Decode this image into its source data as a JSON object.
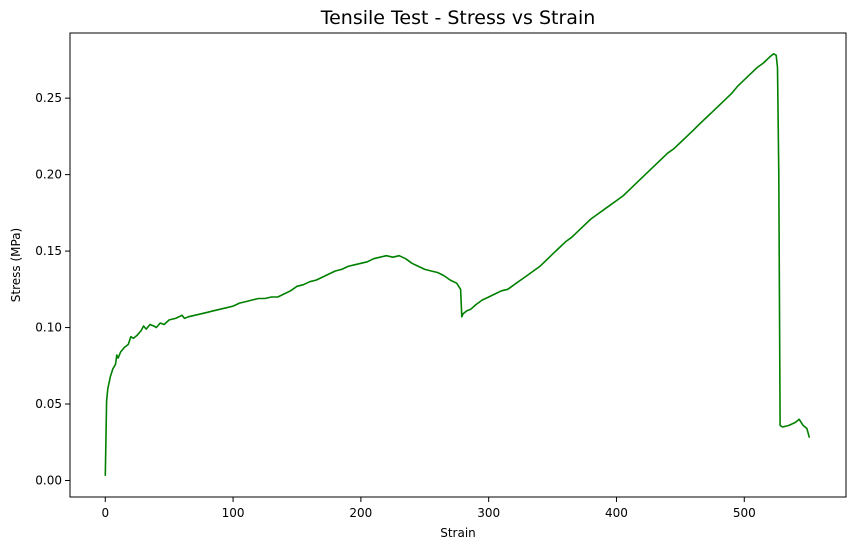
{
  "chart_data": {
    "type": "line",
    "title": "Tensile Test - Stress vs Strain",
    "xlabel": "Strain",
    "ylabel": "Stress (MPa)",
    "xlim": [
      -27.6,
      579.6
    ],
    "ylim": [
      -0.0108,
      0.2926
    ],
    "xticks": [
      0,
      100,
      200,
      300,
      400,
      500
    ],
    "xtick_labels": [
      "0",
      "100",
      "200",
      "300",
      "400",
      "500"
    ],
    "yticks": [
      0.0,
      0.05,
      0.1,
      0.15,
      0.2,
      0.25
    ],
    "ytick_labels": [
      "0.00",
      "0.05",
      "0.10",
      "0.15",
      "0.20",
      "0.25"
    ],
    "grid": false,
    "series": [
      {
        "color": "#008000",
        "x": [
          0,
          1,
          2,
          4,
          6,
          8,
          9,
          10,
          12,
          15,
          18,
          20,
          22,
          25,
          28,
          30,
          32,
          35,
          38,
          40,
          43,
          46,
          50,
          55,
          60,
          62,
          65,
          70,
          75,
          80,
          85,
          90,
          95,
          100,
          105,
          110,
          115,
          120,
          125,
          130,
          135,
          140,
          145,
          150,
          155,
          160,
          165,
          170,
          175,
          180,
          185,
          190,
          195,
          200,
          205,
          210,
          215,
          220,
          225,
          230,
          235,
          240,
          245,
          250,
          255,
          260,
          265,
          270,
          275,
          278,
          279,
          280,
          283,
          286,
          290,
          295,
          300,
          305,
          310,
          315,
          320,
          325,
          330,
          335,
          340,
          345,
          350,
          355,
          360,
          365,
          370,
          375,
          380,
          385,
          390,
          395,
          400,
          405,
          410,
          415,
          420,
          425,
          430,
          435,
          440,
          445,
          450,
          455,
          460,
          465,
          470,
          475,
          480,
          485,
          490,
          495,
          500,
          505,
          510,
          515,
          520,
          523,
          525,
          526,
          527,
          528,
          530,
          535,
          540,
          543,
          546,
          549,
          551
        ],
        "y": [
          0.003,
          0.052,
          0.06,
          0.068,
          0.073,
          0.076,
          0.082,
          0.08,
          0.084,
          0.087,
          0.089,
          0.094,
          0.093,
          0.095,
          0.098,
          0.101,
          0.099,
          0.102,
          0.101,
          0.1,
          0.103,
          0.102,
          0.105,
          0.106,
          0.108,
          0.106,
          0.107,
          0.108,
          0.109,
          0.11,
          0.111,
          0.112,
          0.113,
          0.114,
          0.116,
          0.117,
          0.118,
          0.119,
          0.119,
          0.12,
          0.12,
          0.122,
          0.124,
          0.127,
          0.128,
          0.13,
          0.131,
          0.133,
          0.135,
          0.137,
          0.138,
          0.14,
          0.141,
          0.142,
          0.143,
          0.145,
          0.146,
          0.147,
          0.146,
          0.147,
          0.145,
          0.142,
          0.14,
          0.138,
          0.137,
          0.136,
          0.134,
          0.131,
          0.129,
          0.125,
          0.107,
          0.109,
          0.111,
          0.112,
          0.115,
          0.118,
          0.12,
          0.122,
          0.124,
          0.125,
          0.128,
          0.131,
          0.134,
          0.137,
          0.14,
          0.144,
          0.148,
          0.152,
          0.156,
          0.159,
          0.163,
          0.167,
          0.171,
          0.174,
          0.177,
          0.18,
          0.183,
          0.186,
          0.19,
          0.194,
          0.198,
          0.202,
          0.206,
          0.21,
          0.214,
          0.217,
          0.221,
          0.225,
          0.229,
          0.233,
          0.237,
          0.241,
          0.245,
          0.249,
          0.253,
          0.258,
          0.262,
          0.266,
          0.27,
          0.273,
          0.277,
          0.279,
          0.278,
          0.27,
          0.2,
          0.036,
          0.035,
          0.036,
          0.038,
          0.04,
          0.036,
          0.034,
          0.028
        ]
      }
    ]
  }
}
